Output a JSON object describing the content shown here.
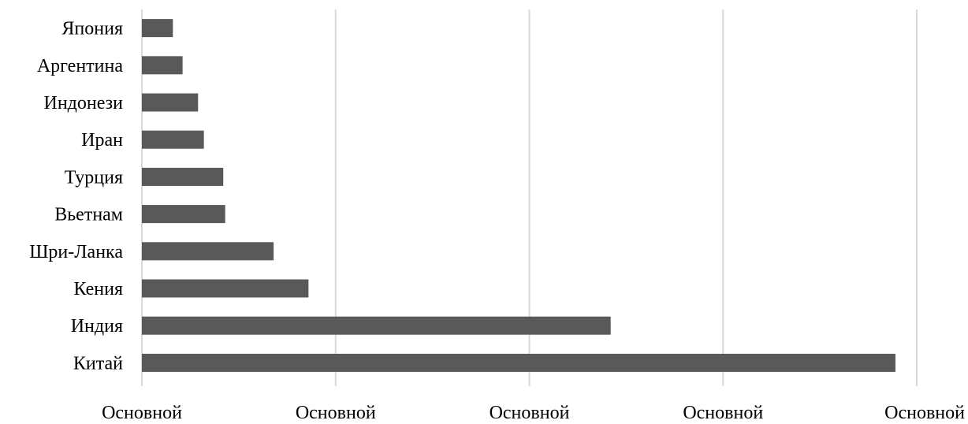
{
  "chart_data": {
    "type": "bar",
    "orientation": "horizontal",
    "categories": [
      "Япония",
      "Аргентина",
      "Индонези",
      "Иран",
      "Турция",
      "Вьетнам",
      "Шри-Ланка",
      "Кения",
      "Индия",
      "Китай"
    ],
    "values": [
      0.16,
      0.21,
      0.29,
      0.32,
      0.42,
      0.43,
      0.68,
      0.86,
      2.42,
      3.89
    ],
    "xlim": [
      0,
      4
    ],
    "x_ticks": [
      0,
      1,
      2,
      3,
      4
    ],
    "x_tick_labels": [
      "Основной",
      "Основной",
      "Основной",
      "Основной",
      "Основной"
    ],
    "grid": true,
    "bar_color": "#595959",
    "grid_color": "#d9d9d9"
  }
}
